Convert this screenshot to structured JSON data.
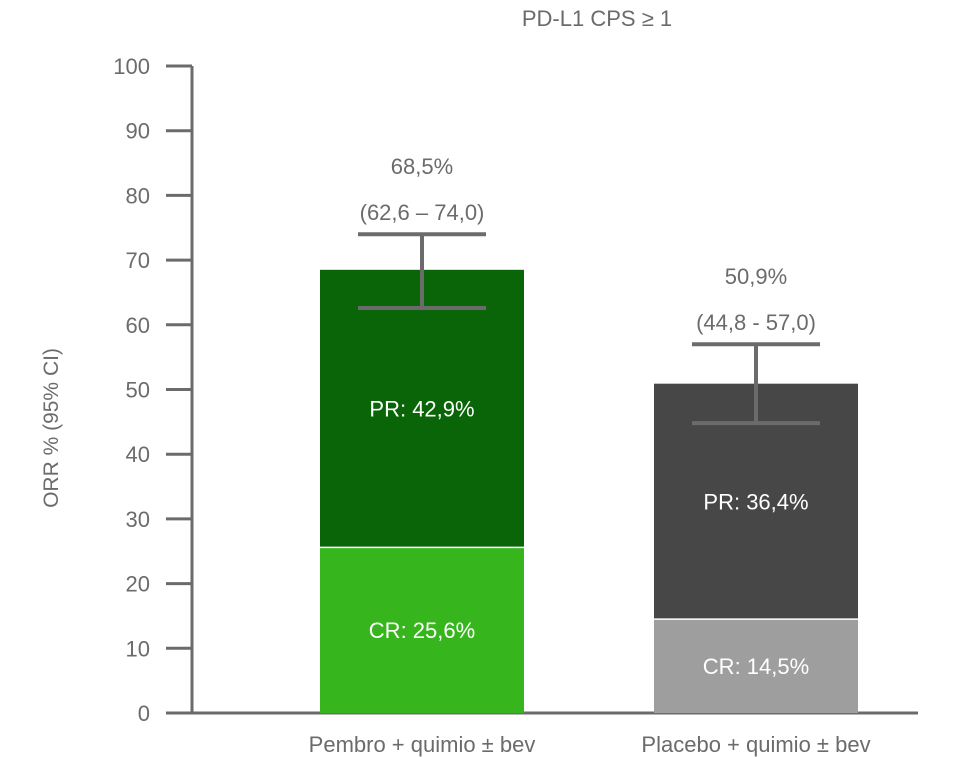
{
  "chart_data": {
    "type": "bar",
    "stacked": true,
    "title": "PD-L1 CPS ≥ 1",
    "ylabel": "ORR % (95% CI)",
    "xlabel": "",
    "ylim": [
      0,
      100
    ],
    "yticks": [
      0,
      10,
      20,
      30,
      40,
      50,
      60,
      70,
      80,
      90,
      100
    ],
    "categories": [
      "Pembro + quimio ± bev",
      "Placebo + quimio ± bev"
    ],
    "series": [
      {
        "values": [
          25.6,
          14.5
        ],
        "labels": [
          "CR: 25,6%",
          "CR: 14,5%"
        ],
        "colors": [
          "#36b51c",
          "#9e9e9e"
        ]
      },
      {
        "values": [
          42.9,
          36.4
        ],
        "labels": [
          "PR: 42,9%",
          "PR: 36,4%"
        ],
        "colors": [
          "#0a6408",
          "#474747"
        ]
      }
    ],
    "totals": [
      {
        "value": 68.5,
        "label": "68,5%",
        "ci_label": "(62,6 – 74,0)",
        "ci": [
          62.6,
          74.0
        ]
      },
      {
        "value": 50.9,
        "label": "50,9%",
        "ci_label": "(44,8 - 57,0)",
        "ci": [
          44.8,
          57.0
        ]
      }
    ],
    "axis_color": "#6b6b6b",
    "error_bar_color": "#6b6b6b",
    "grid": false,
    "legend": "none"
  }
}
